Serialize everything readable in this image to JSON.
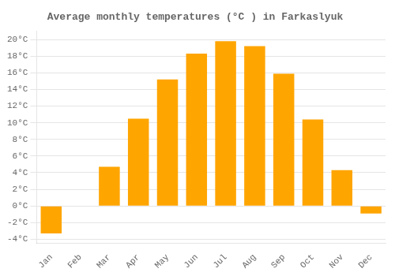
{
  "chart_data": {
    "type": "bar",
    "title": "Average monthly temperatures (°C ) in Farkaslyuk",
    "categories": [
      "Jan",
      "Feb",
      "Mar",
      "Apr",
      "May",
      "Jun",
      "Jul",
      "Aug",
      "Sep",
      "Oct",
      "Nov",
      "Dec"
    ],
    "values": [
      -3.3,
      0,
      4.7,
      10.5,
      15.2,
      18.3,
      19.8,
      19.2,
      15.9,
      10.4,
      4.3,
      -0.9
    ],
    "color": "#FFA500",
    "ylim": [
      -4.5,
      21
    ],
    "yticks": [
      {
        "value": -4,
        "label": "-4°C"
      },
      {
        "value": -2,
        "label": "-2°C"
      },
      {
        "value": 0,
        "label": "0°C"
      },
      {
        "value": 2,
        "label": "2°C"
      },
      {
        "value": 4,
        "label": "4°C"
      },
      {
        "value": 6,
        "label": "6°C"
      },
      {
        "value": 8,
        "label": "8°C"
      },
      {
        "value": 10,
        "label": "10°C"
      },
      {
        "value": 12,
        "label": "12°C"
      },
      {
        "value": 14,
        "label": "14°C"
      },
      {
        "value": 16,
        "label": "16°C"
      },
      {
        "value": 18,
        "label": "18°C"
      },
      {
        "value": 20,
        "label": "20°C"
      }
    ],
    "grid": true
  }
}
